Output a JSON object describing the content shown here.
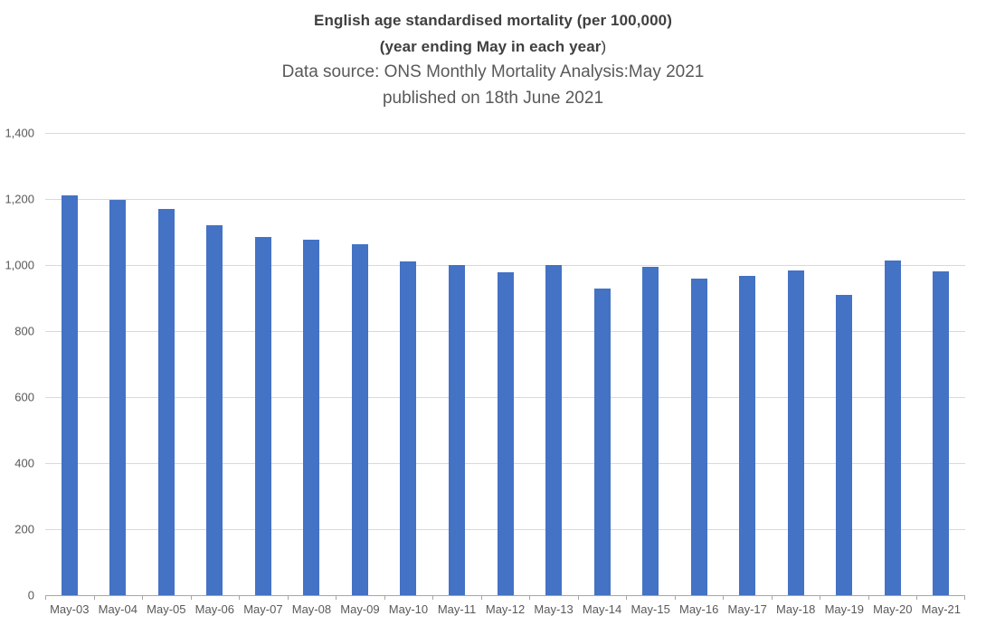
{
  "title": {
    "line1": "English age standardised mortality (per 100,000)",
    "line2_bold": "(year ending May in each year",
    "line2_tail": ")",
    "line3": "Data source: ONS Monthly Mortality Analysis:May 2021",
    "line4": "published on 18th June 2021"
  },
  "colors": {
    "bar": "#4472C4",
    "gridline": "#D9D9D9",
    "axis": "#A6A6A6",
    "axis_labels": "#595959",
    "title_primary": "#404040",
    "title_secondary": "#595959"
  },
  "chart_data": {
    "type": "bar",
    "title": "English age standardised mortality (per 100,000) (year ending May in each year) Data source: ONS Monthly Mortality Analysis:May 2021 published on 18th June 2021",
    "xlabel": "",
    "ylabel": "",
    "categories": [
      "May-03",
      "May-04",
      "May-05",
      "May-06",
      "May-07",
      "May-08",
      "May-09",
      "May-10",
      "May-11",
      "May-12",
      "May-13",
      "May-14",
      "May-15",
      "May-16",
      "May-17",
      "May-18",
      "May-19",
      "May-20",
      "May-21"
    ],
    "values": [
      1210,
      1197,
      1169,
      1120,
      1086,
      1076,
      1063,
      1010,
      1000,
      978,
      1000,
      929,
      994,
      959,
      967,
      983,
      909,
      1013,
      980
    ],
    "ylim": [
      0,
      1400
    ],
    "ytick_step": 200,
    "yticks": [
      {
        "value": 0,
        "label": "0"
      },
      {
        "value": 200,
        "label": "200"
      },
      {
        "value": 400,
        "label": "400"
      },
      {
        "value": 600,
        "label": "600"
      },
      {
        "value": 800,
        "label": "800"
      },
      {
        "value": 1000,
        "label": "1,000"
      },
      {
        "value": 1200,
        "label": "1,200"
      },
      {
        "value": 1400,
        "label": "1,400"
      }
    ],
    "grid": true,
    "legend": false
  }
}
